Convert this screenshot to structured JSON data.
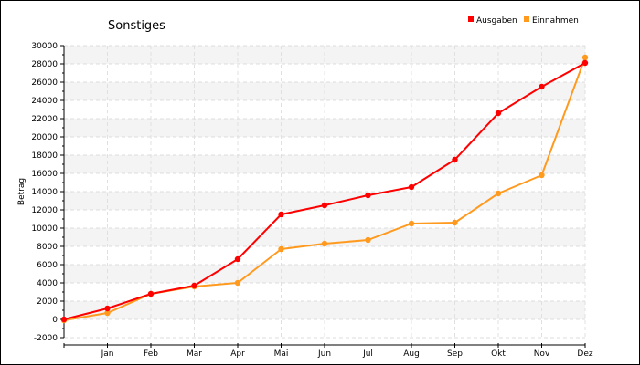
{
  "chart_data": {
    "type": "line",
    "title": "Sonstiges",
    "xlabel": "",
    "ylabel": "Betrag",
    "categories": [
      "",
      "Jan",
      "Feb",
      "Mar",
      "Apr",
      "Mai",
      "Jun",
      "Jul",
      "Aug",
      "Sep",
      "Okt",
      "Nov",
      "Dez"
    ],
    "ylim": [
      -2000,
      30000
    ],
    "yticks": [
      -2000,
      0,
      2000,
      4000,
      6000,
      8000,
      10000,
      12000,
      14000,
      16000,
      18000,
      20000,
      22000,
      24000,
      26000,
      28000,
      30000
    ],
    "grid": true,
    "legend_position": "top-right",
    "series": [
      {
        "name": "Ausgaben",
        "color": "#ff0000",
        "values": [
          0,
          1200,
          2800,
          3700,
          6600,
          11500,
          12500,
          13600,
          14500,
          17500,
          22600,
          25500,
          28100
        ]
      },
      {
        "name": "Einnahmen",
        "color": "#ff9a1f",
        "values": [
          -100,
          700,
          2800,
          3600,
          4000,
          7700,
          8300,
          8700,
          10500,
          10600,
          13800,
          15800,
          28700
        ]
      }
    ]
  }
}
